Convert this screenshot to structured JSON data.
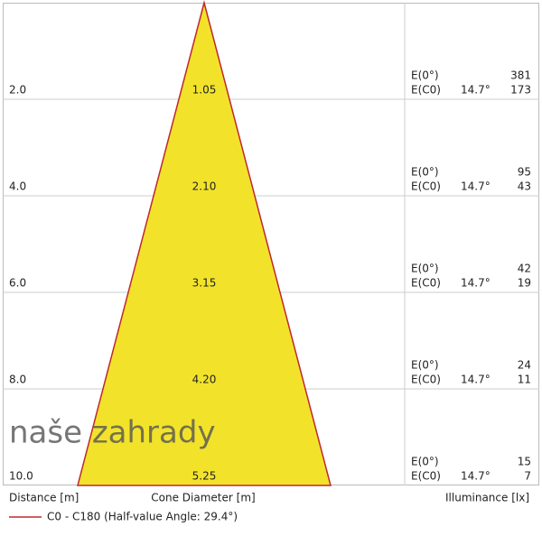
{
  "rows": [
    {
      "distance": "2.0",
      "diameter": "1.05",
      "e0_label": "E(0°)",
      "ec0_label": "E(C0)",
      "angle": "14.7°",
      "e0": "381",
      "ec0": "173"
    },
    {
      "distance": "4.0",
      "diameter": "2.10",
      "e0_label": "E(0°)",
      "ec0_label": "E(C0)",
      "angle": "14.7°",
      "e0": "95",
      "ec0": "43"
    },
    {
      "distance": "6.0",
      "diameter": "3.15",
      "e0_label": "E(0°)",
      "ec0_label": "E(C0)",
      "angle": "14.7°",
      "e0": "42",
      "ec0": "19"
    },
    {
      "distance": "8.0",
      "diameter": "4.20",
      "e0_label": "E(0°)",
      "ec0_label": "E(C0)",
      "angle": "14.7°",
      "e0": "24",
      "ec0": "11"
    },
    {
      "distance": "10.0",
      "diameter": "5.25",
      "e0_label": "E(0°)",
      "ec0_label": "E(C0)",
      "angle": "14.7°",
      "e0": "15",
      "ec0": "7"
    }
  ],
  "watermark": "naše zahrady",
  "footer": {
    "distance": "Distance [m]",
    "diameter": "Cone Diameter [m]",
    "illuminance": "Illuminance [lx]"
  },
  "legend": "C0 - C180 (Half-value Angle: 29.4°)"
}
